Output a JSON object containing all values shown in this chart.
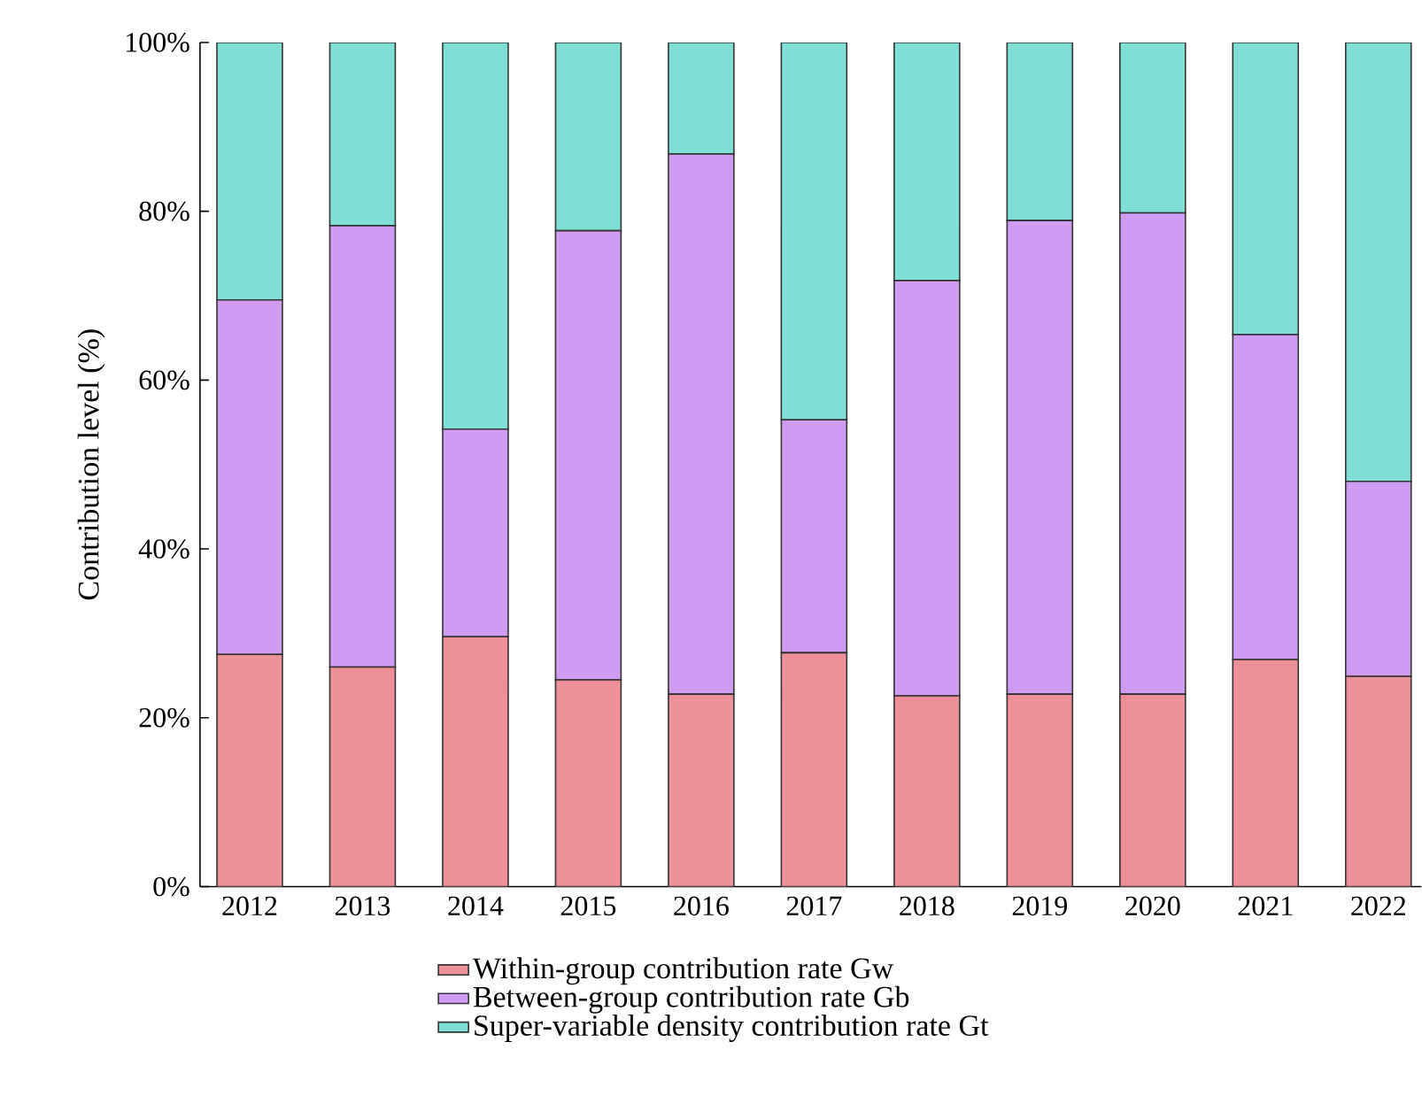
{
  "chart_data": {
    "type": "bar",
    "stacked": true,
    "ylabel": "Contribution level (%)",
    "categories": [
      "2012",
      "2013",
      "2014",
      "2015",
      "2016",
      "2017",
      "2018",
      "2019",
      "2020",
      "2021",
      "2022"
    ],
    "series": [
      {
        "name": "Within-group contribution rate Gw",
        "color": "#ee9097",
        "values": [
          27.5,
          26.0,
          29.6,
          24.5,
          22.8,
          27.7,
          22.6,
          22.8,
          22.8,
          26.9,
          24.9
        ]
      },
      {
        "name": "Between-group contribution rate Gb",
        "color": "#cf9cf2",
        "values": [
          42.0,
          52.3,
          24.6,
          53.2,
          64.0,
          27.6,
          49.2,
          56.1,
          57.0,
          38.5,
          23.1
        ]
      },
      {
        "name": "Super-variable density contribution rate Gt",
        "color": "#7fdfd6",
        "values": [
          30.5,
          21.7,
          45.8,
          22.3,
          13.2,
          44.7,
          28.2,
          21.1,
          20.2,
          34.6,
          52.0
        ]
      }
    ],
    "ylim": [
      0,
      100
    ],
    "yticks": [
      {
        "value": 0,
        "label": "0%"
      },
      {
        "value": 20,
        "label": "20%"
      },
      {
        "value": 40,
        "label": "40%"
      },
      {
        "value": 60,
        "label": "60%"
      },
      {
        "value": 80,
        "label": "80%"
      },
      {
        "value": 100,
        "label": "100%"
      }
    ],
    "grid": false,
    "legend": "bottom"
  }
}
